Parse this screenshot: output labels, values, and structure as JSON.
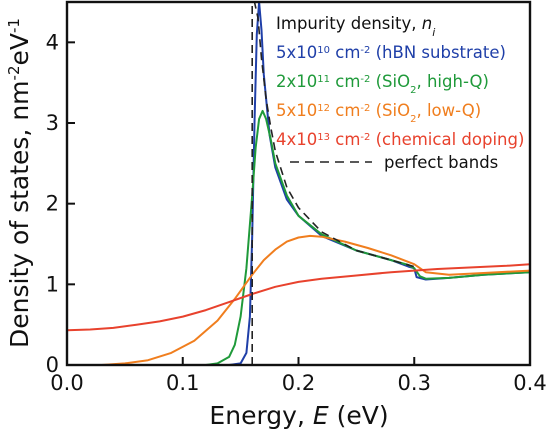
{
  "chart_data": {
    "type": "line",
    "xlabel": "Energy, E (eV)",
    "ylabel": "Density of states, nm⁻²eV⁻¹",
    "xlim": [
      0.0,
      0.4
    ],
    "ylim": [
      0,
      4.5
    ],
    "xticks": [
      "0.0",
      "0.1",
      "0.2",
      "0.3",
      "0.4"
    ],
    "xtick_values": [
      0.0,
      0.1,
      0.2,
      0.3,
      0.4
    ],
    "yticks": [
      "0",
      "1",
      "2",
      "3",
      "4"
    ],
    "ytick_values": [
      0,
      1,
      2,
      3,
      4
    ],
    "grid": false,
    "legend_title": "Impurity density, n_i",
    "legend_placement": "top-right",
    "series": [
      {
        "name": "5x10^10 cm^-2 (hBN substrate)",
        "color": "#1f3fa8",
        "x": [
          0.0,
          0.14,
          0.15,
          0.155,
          0.158,
          0.16,
          0.162,
          0.164,
          0.166,
          0.168,
          0.17,
          0.175,
          0.18,
          0.19,
          0.2,
          0.22,
          0.25,
          0.28,
          0.295,
          0.3,
          0.302,
          0.31,
          0.33,
          0.36,
          0.4
        ],
        "values": [
          0.0,
          0.0,
          0.02,
          0.15,
          0.6,
          1.6,
          3.0,
          4.1,
          4.5,
          4.15,
          3.6,
          2.85,
          2.45,
          2.05,
          1.85,
          1.6,
          1.42,
          1.3,
          1.22,
          1.2,
          1.09,
          1.06,
          1.08,
          1.12,
          1.15
        ]
      },
      {
        "name": "2x10^11 cm^-2 (SiO2, high-Q)",
        "color": "#1f9a3a",
        "x": [
          0.0,
          0.12,
          0.13,
          0.14,
          0.145,
          0.15,
          0.155,
          0.16,
          0.163,
          0.166,
          0.169,
          0.172,
          0.176,
          0.18,
          0.19,
          0.2,
          0.22,
          0.25,
          0.28,
          0.295,
          0.3,
          0.305,
          0.31,
          0.33,
          0.36,
          0.4
        ],
        "values": [
          0.0,
          0.0,
          0.02,
          0.1,
          0.25,
          0.6,
          1.2,
          2.1,
          2.7,
          3.05,
          3.15,
          3.05,
          2.8,
          2.5,
          2.1,
          1.85,
          1.62,
          1.42,
          1.3,
          1.24,
          1.2,
          1.1,
          1.07,
          1.08,
          1.12,
          1.15
        ]
      },
      {
        "name": "5x10^12 cm^-2 (SiO2, low-Q)",
        "color": "#f07e1e",
        "x": [
          0.0,
          0.03,
          0.05,
          0.07,
          0.09,
          0.11,
          0.13,
          0.145,
          0.16,
          0.17,
          0.18,
          0.19,
          0.2,
          0.21,
          0.22,
          0.24,
          0.26,
          0.28,
          0.3,
          0.31,
          0.33,
          0.36,
          0.4
        ],
        "values": [
          0.0,
          0.0,
          0.02,
          0.06,
          0.15,
          0.3,
          0.55,
          0.82,
          1.12,
          1.3,
          1.43,
          1.53,
          1.58,
          1.6,
          1.59,
          1.53,
          1.45,
          1.36,
          1.25,
          1.15,
          1.12,
          1.14,
          1.17
        ]
      },
      {
        "name": "4x10^13 cm^-2 (chemical doping)",
        "color": "#e8422d",
        "x": [
          0.0,
          0.02,
          0.04,
          0.06,
          0.08,
          0.1,
          0.12,
          0.14,
          0.16,
          0.18,
          0.2,
          0.22,
          0.25,
          0.28,
          0.3,
          0.32,
          0.35,
          0.38,
          0.4
        ],
        "values": [
          0.43,
          0.44,
          0.46,
          0.5,
          0.54,
          0.6,
          0.68,
          0.78,
          0.88,
          0.97,
          1.03,
          1.07,
          1.11,
          1.15,
          1.17,
          1.19,
          1.21,
          1.23,
          1.25
        ]
      },
      {
        "name": "perfect bands",
        "color": "#222222",
        "dashed": true,
        "x": [
          0.16,
          0.16,
          0.162,
          0.165,
          0.168,
          0.172,
          0.176,
          0.18,
          0.19,
          0.2,
          0.22,
          0.25,
          0.28,
          0.3
        ],
        "values": [
          0.0,
          4.5,
          4.5,
          4.3,
          3.8,
          3.3,
          2.95,
          2.65,
          2.2,
          1.95,
          1.65,
          1.42,
          1.3,
          1.22
        ]
      }
    ]
  }
}
